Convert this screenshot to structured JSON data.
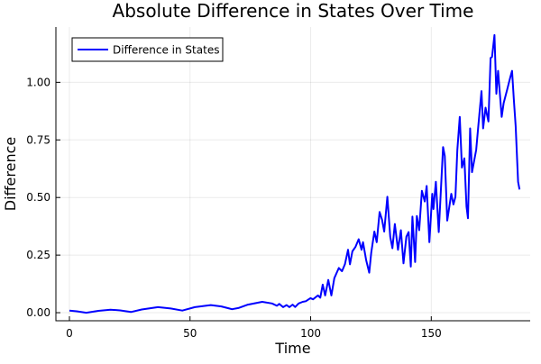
{
  "chart_data": {
    "type": "line",
    "title": "Absolute Difference in States Over Time",
    "xlabel": "Time",
    "ylabel": "Difference",
    "xlim": [
      -5.6,
      191
    ],
    "ylim": [
      -0.035,
      1.24
    ],
    "xticks": [
      0,
      50,
      100,
      150
    ],
    "xtick_labels": [
      "0",
      "50",
      "100",
      "150"
    ],
    "yticks": [
      0,
      0.25,
      0.5,
      0.75,
      1.0
    ],
    "ytick_labels": [
      "0.00",
      "0.25",
      "0.50",
      "0.75",
      "1.00"
    ],
    "grid": true,
    "legend_position": "top-left",
    "series": [
      {
        "name": "Difference in States",
        "color": "#0000ff",
        "x": [
          0,
          3,
          7,
          12,
          17,
          21,
          25.5,
          30,
          36.7,
          42,
          46.8,
          52,
          58.6,
          63,
          67.4,
          70,
          74,
          79.9,
          84,
          86,
          87,
          88.6,
          90,
          91.2,
          92.5,
          93.6,
          95,
          96.7,
          98,
          99.9,
          101,
          103,
          104,
          105,
          106,
          107.3,
          108.6,
          109.8,
          111.7,
          113,
          114.2,
          115.5,
          116.3,
          117.3,
          118.6,
          119.9,
          121.1,
          121.7,
          123,
          124.3,
          125.1,
          126.4,
          127.4,
          128.6,
          129.6,
          130.5,
          131.8,
          133,
          133.9,
          134.9,
          136.2,
          137.4,
          138.5,
          139.7,
          140.6,
          141.5,
          142.2,
          143.3,
          144,
          145,
          146.1,
          147.3,
          148.1,
          149.2,
          150.4,
          150.9,
          151.9,
          153.1,
          154.9,
          155.6,
          156.6,
          158.3,
          159.2,
          160,
          160.8,
          161.8,
          162.7,
          163.7,
          164.6,
          165.2,
          166.1,
          166.9,
          168.6,
          169.6,
          170.8,
          171.5,
          172.5,
          173.7,
          174.6,
          175.2,
          176.2,
          177,
          177.7,
          179.2,
          180,
          181.5,
          182.7,
          183.5,
          184.2,
          185,
          186,
          186.6
        ],
        "y": [
          0.009,
          0.006,
          0.0,
          0.008,
          0.013,
          0.01,
          0.003,
          0.014,
          0.024,
          0.018,
          0.009,
          0.024,
          0.033,
          0.027,
          0.015,
          0.02,
          0.035,
          0.047,
          0.04,
          0.03,
          0.038,
          0.024,
          0.033,
          0.024,
          0.035,
          0.025,
          0.04,
          0.047,
          0.05,
          0.063,
          0.058,
          0.075,
          0.065,
          0.122,
          0.075,
          0.142,
          0.075,
          0.15,
          0.194,
          0.18,
          0.21,
          0.273,
          0.21,
          0.266,
          0.286,
          0.319,
          0.273,
          0.306,
          0.228,
          0.174,
          0.26,
          0.352,
          0.306,
          0.437,
          0.404,
          0.352,
          0.503,
          0.33,
          0.28,
          0.385,
          0.273,
          0.358,
          0.214,
          0.33,
          0.35,
          0.2,
          0.417,
          0.22,
          0.42,
          0.358,
          0.529,
          0.483,
          0.55,
          0.306,
          0.516,
          0.45,
          0.568,
          0.35,
          0.719,
          0.68,
          0.4,
          0.516,
          0.47,
          0.503,
          0.706,
          0.85,
          0.63,
          0.67,
          0.46,
          0.41,
          0.8,
          0.61,
          0.706,
          0.82,
          0.962,
          0.8,
          0.89,
          0.83,
          1.106,
          1.11,
          1.205,
          0.95,
          1.05,
          0.85,
          0.91,
          0.97,
          1.02,
          1.05,
          0.93,
          0.81,
          0.568,
          0.535
        ]
      }
    ]
  }
}
